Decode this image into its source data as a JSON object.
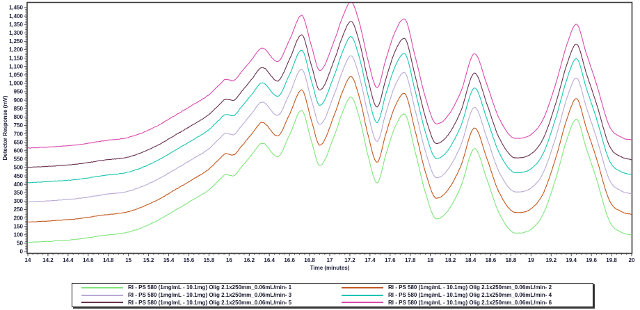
{
  "chart_data": {
    "type": "line",
    "title": "",
    "xlabel": "Time (minutes)",
    "ylabel": "Detector Response (mV)",
    "xlim": [
      14,
      20
    ],
    "ylim": [
      0,
      1480
    ],
    "x_major_tick": 0.2,
    "x_minor_tick": 0.05,
    "y_major_tick": 50,
    "y_minor_tick": 10,
    "y_axis_max_labeled_tick": 1450,
    "grid": false,
    "background": "#ffffff",
    "plot_border_color": "#3b3b3b",
    "tick_color": "#4a4a4a",
    "tick_label_color": "#23233f",
    "legend_position": "bottom",
    "legend_columns": 2,
    "noise_mV": 2.1,
    "profile_note": "shared chromatogram profile: [time_min, mV_above_series_baseline]",
    "profile_keypoints": [
      [
        14.0,
        0
      ],
      [
        14.25,
        8
      ],
      [
        14.5,
        20
      ],
      [
        14.75,
        42
      ],
      [
        15.0,
        62
      ],
      [
        15.25,
        120
      ],
      [
        15.5,
        205
      ],
      [
        15.65,
        258
      ],
      [
        15.8,
        315
      ],
      [
        15.9,
        372
      ],
      [
        15.97,
        406
      ],
      [
        16.04,
        398
      ],
      [
        16.12,
        448
      ],
      [
        16.22,
        520
      ],
      [
        16.33,
        592
      ],
      [
        16.48,
        512
      ],
      [
        16.6,
        640
      ],
      [
        16.72,
        786
      ],
      [
        16.82,
        600
      ],
      [
        16.9,
        458
      ],
      [
        17.05,
        645
      ],
      [
        17.13,
        780
      ],
      [
        17.21,
        866
      ],
      [
        17.3,
        730
      ],
      [
        17.38,
        520
      ],
      [
        17.47,
        357
      ],
      [
        17.56,
        530
      ],
      [
        17.65,
        690
      ],
      [
        17.74,
        766
      ],
      [
        17.85,
        540
      ],
      [
        17.95,
        300
      ],
      [
        18.06,
        142
      ],
      [
        18.16,
        180
      ],
      [
        18.3,
        330
      ],
      [
        18.44,
        560
      ],
      [
        18.56,
        380
      ],
      [
        18.68,
        180
      ],
      [
        18.85,
        57
      ],
      [
        19.0,
        80
      ],
      [
        19.12,
        170
      ],
      [
        19.25,
        390
      ],
      [
        19.36,
        620
      ],
      [
        19.45,
        735
      ],
      [
        19.55,
        560
      ],
      [
        19.65,
        380
      ],
      [
        19.78,
        128
      ],
      [
        19.9,
        62
      ],
      [
        20.0,
        46
      ]
    ],
    "series": [
      {
        "name": "RI - PS 580 (1mg/mL - 10.1mg) Olig 2.1x250mm_0.06mL/min- 1",
        "color": "#7fe57a",
        "baseline": 55
      },
      {
        "name": "RI - PS 580 (1mg/mL - 10.1mg) Olig 2.1x250mm_0.06mL/min- 2",
        "color": "#c3571f",
        "baseline": 175
      },
      {
        "name": "RI - PS 580 (1mg/mL - 10.1mg) Olig 2.1x250mm_0.06mL/min- 3",
        "color": "#b7a9d6",
        "baseline": 295
      },
      {
        "name": "RI - PS 580 (1mg/mL - 10.1mg) Olig 2.1x250mm_0.06mL/min- 4",
        "color": "#19c5b2",
        "baseline": 410
      },
      {
        "name": "RI - PS 580 (1mg/mL - 10.1mg) Olig 2.1x250mm_0.06mL/min- 5",
        "color": "#68304f",
        "baseline": 500
      },
      {
        "name": "RI - PS 580 (1mg/mL - 10.1mg) Olig 2.1x250mm_0.06mL/min- 6",
        "color": "#da49ae",
        "baseline": 615
      }
    ],
    "peaks_minutes": [
      15.97,
      16.33,
      16.72,
      17.21,
      17.74,
      18.44,
      19.45
    ]
  }
}
